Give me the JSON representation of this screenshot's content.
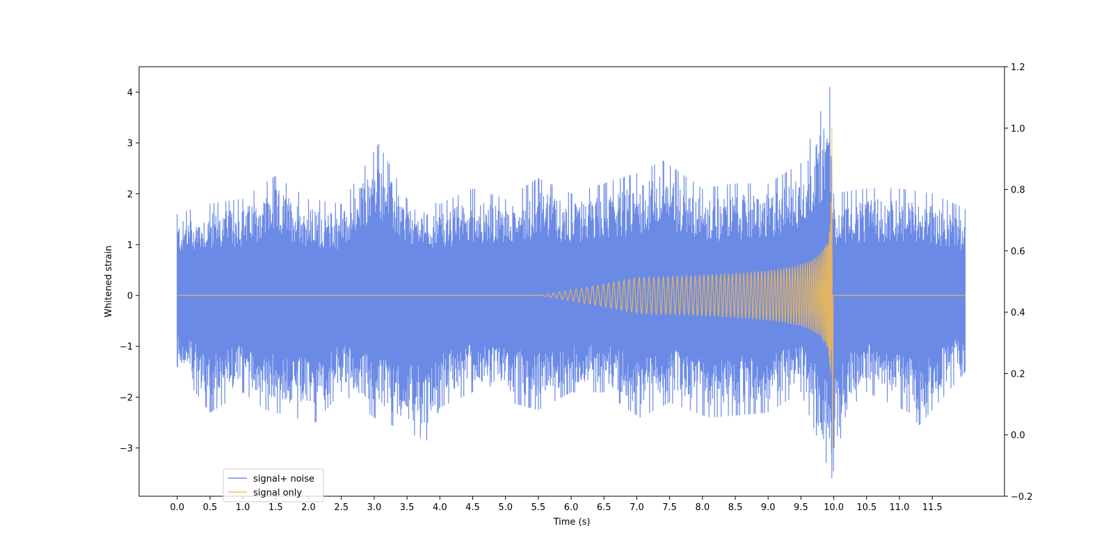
{
  "chart_data": {
    "type": "line",
    "title": "",
    "xlabel": "Time (s)",
    "ylabel": "Whitened strain",
    "xlim": [
      -0.58,
      12.6
    ],
    "ylim": [
      -3.95,
      4.5
    ],
    "y2lim": [
      -0.2,
      1.2
    ],
    "x_ticks": [
      0.0,
      0.5,
      1.0,
      1.5,
      2.0,
      2.5,
      3.0,
      3.5,
      4.0,
      4.5,
      5.0,
      5.5,
      6.0,
      6.5,
      7.0,
      7.5,
      8.0,
      8.5,
      9.0,
      9.5,
      10.0,
      10.5,
      11.0,
      11.5
    ],
    "x_tick_labels": [
      "0.0",
      "0.5",
      "1.0",
      "1.5",
      "2.0",
      "2.5",
      "3.0",
      "3.5",
      "4.0",
      "4.5",
      "5.0",
      "5.5",
      "6.0",
      "6.5",
      "7.0",
      "7.5",
      "8.0",
      "8.5",
      "9.0",
      "9.5",
      "10.0",
      "10.5",
      "11.0",
      "11.5"
    ],
    "y_ticks": [
      -3,
      -2,
      -1,
      0,
      1,
      2,
      3,
      4
    ],
    "y_tick_labels": [
      "−3",
      "−2",
      "−1",
      "0",
      "1",
      "2",
      "3",
      "4"
    ],
    "y2_ticks": [
      -0.2,
      0.0,
      0.2,
      0.4,
      0.6,
      0.8,
      1.0,
      1.2
    ],
    "y2_tick_labels": [
      "−0.2",
      "0.0",
      "0.2",
      "0.4",
      "0.6",
      "0.8",
      "1.0",
      "1.2"
    ],
    "x_range_data": [
      0.0,
      12.0
    ],
    "legend_position": "lower-left",
    "grid": false,
    "series": [
      {
        "name": "signal+ noise",
        "color": "#6b8ae6",
        "envelope_upper": [
          [
            0.0,
            1.6
          ],
          [
            0.5,
            1.8
          ],
          [
            1.0,
            1.9
          ],
          [
            1.5,
            2.35
          ],
          [
            2.0,
            1.9
          ],
          [
            2.5,
            1.8
          ],
          [
            3.07,
            2.98
          ],
          [
            3.5,
            1.9
          ],
          [
            4.0,
            1.8
          ],
          [
            4.5,
            2.1
          ],
          [
            5.0,
            1.9
          ],
          [
            5.5,
            2.3
          ],
          [
            6.0,
            2.0
          ],
          [
            6.5,
            2.2
          ],
          [
            7.0,
            2.4
          ],
          [
            7.4,
            2.65
          ],
          [
            8.0,
            2.1
          ],
          [
            8.5,
            2.2
          ],
          [
            9.0,
            2.2
          ],
          [
            9.5,
            2.6
          ],
          [
            9.94,
            4.1
          ],
          [
            10.0,
            2.0
          ],
          [
            10.5,
            2.1
          ],
          [
            11.0,
            2.1
          ],
          [
            11.5,
            2.0
          ],
          [
            12.0,
            1.7
          ]
        ],
        "envelope_lower": [
          [
            0.0,
            -1.4
          ],
          [
            0.5,
            -2.3
          ],
          [
            1.0,
            -1.9
          ],
          [
            1.35,
            -2.25
          ],
          [
            2.1,
            -2.5
          ],
          [
            2.5,
            -1.9
          ],
          [
            3.0,
            -2.4
          ],
          [
            3.8,
            -2.85
          ],
          [
            4.0,
            -2.2
          ],
          [
            4.5,
            -1.9
          ],
          [
            5.5,
            -2.25
          ],
          [
            6.0,
            -1.9
          ],
          [
            6.5,
            -1.9
          ],
          [
            7.05,
            -2.4
          ],
          [
            7.5,
            -2.1
          ],
          [
            8.1,
            -2.4
          ],
          [
            9.0,
            -2.3
          ],
          [
            9.5,
            -1.9
          ],
          [
            9.97,
            -3.6
          ],
          [
            10.2,
            -2.25
          ],
          [
            10.5,
            -1.9
          ],
          [
            11.15,
            -2.3
          ],
          [
            11.3,
            -2.55
          ],
          [
            12.0,
            -1.5
          ]
        ]
      },
      {
        "name": "signal only",
        "color": "#ffbe45",
        "axis": "right",
        "baseline": 0.0,
        "chirp_start": 5.5,
        "merger_time": 9.97,
        "peak_upper": 3.3,
        "peak_lower": -3.0
      }
    ]
  }
}
